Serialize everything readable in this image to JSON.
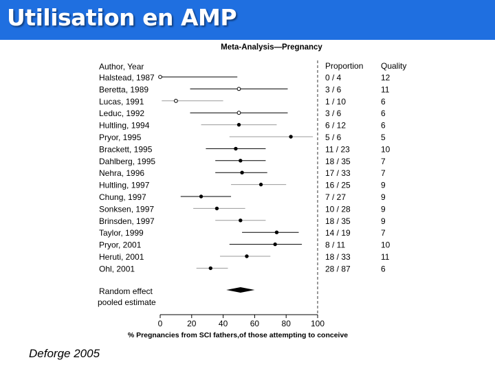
{
  "slide_title": "Utilisation en AMP",
  "caption": "Deforge 2005",
  "colors": {
    "title_bar": "#1f6fe0",
    "title_text": "#ffffff",
    "ci_gray": "#999999",
    "ci_black": "#000000"
  },
  "chart_data": {
    "type": "forest",
    "title": "Meta-Analysis—Pregnancy",
    "xlabel": "% Pregnancies from SCI fathers,of those attempting to conceive",
    "xlim": [
      0,
      100
    ],
    "xticks": [
      0,
      20,
      40,
      60,
      80,
      100
    ],
    "reference_line": 100,
    "column_headers": {
      "study": "Author,  Year",
      "proportion": "Proportion",
      "quality": "Quality"
    },
    "studies": [
      {
        "label": "Halstead, 1987",
        "estimate": 0,
        "ci_low": 0,
        "ci_high": 49,
        "proportion": "0 / 4",
        "quality": "12",
        "marker": "open",
        "ci_color": "black"
      },
      {
        "label": "Beretta, 1989",
        "estimate": 50,
        "ci_low": 19,
        "ci_high": 81,
        "proportion": "3 / 6",
        "quality": "11",
        "marker": "open",
        "ci_color": "black"
      },
      {
        "label": "Lucas, 1991",
        "estimate": 10,
        "ci_low": 1,
        "ci_high": 40,
        "proportion": "1 / 10",
        "quality": "6",
        "marker": "open",
        "ci_color": "gray"
      },
      {
        "label": "Leduc, 1992",
        "estimate": 50,
        "ci_low": 19,
        "ci_high": 81,
        "proportion": "3 / 6",
        "quality": "6",
        "marker": "open",
        "ci_color": "black"
      },
      {
        "label": "Hultling, 1994",
        "estimate": 50,
        "ci_low": 26,
        "ci_high": 74,
        "proportion": "6 / 12",
        "quality": "6",
        "marker": "filled",
        "ci_color": "gray"
      },
      {
        "label": "Pryor, 1995",
        "estimate": 83,
        "ci_low": 44,
        "ci_high": 97,
        "proportion": "5 / 6",
        "quality": "5",
        "marker": "filled",
        "ci_color": "gray"
      },
      {
        "label": "Brackett, 1995",
        "estimate": 48,
        "ci_low": 29,
        "ci_high": 67,
        "proportion": "11 / 23",
        "quality": "10",
        "marker": "filled",
        "ci_color": "black"
      },
      {
        "label": "Dahlberg, 1995",
        "estimate": 51,
        "ci_low": 35,
        "ci_high": 67,
        "proportion": "18 / 35",
        "quality": "7",
        "marker": "filled",
        "ci_color": "black"
      },
      {
        "label": "Nehra, 1996",
        "estimate": 52,
        "ci_low": 35,
        "ci_high": 68,
        "proportion": "17 / 33",
        "quality": "7",
        "marker": "filled",
        "ci_color": "black"
      },
      {
        "label": "Hultling, 1997",
        "estimate": 64,
        "ci_low": 45,
        "ci_high": 80,
        "proportion": "16 / 25",
        "quality": "9",
        "marker": "filled",
        "ci_color": "gray"
      },
      {
        "label": "Chung, 1997",
        "estimate": 26,
        "ci_low": 13,
        "ci_high": 45,
        "proportion": "7 / 27",
        "quality": "9",
        "marker": "filled",
        "ci_color": "black"
      },
      {
        "label": "Sonksen, 1997",
        "estimate": 36,
        "ci_low": 21,
        "ci_high": 54,
        "proportion": "10 / 28",
        "quality": "9",
        "marker": "filled",
        "ci_color": "gray"
      },
      {
        "label": "Brinsden, 1997",
        "estimate": 51,
        "ci_low": 35,
        "ci_high": 67,
        "proportion": "18 / 35",
        "quality": "9",
        "marker": "filled",
        "ci_color": "gray"
      },
      {
        "label": "Taylor, 1999",
        "estimate": 74,
        "ci_low": 52,
        "ci_high": 88,
        "proportion": "14 / 19",
        "quality": "7",
        "marker": "filled",
        "ci_color": "black"
      },
      {
        "label": "Pryor, 2001",
        "estimate": 73,
        "ci_low": 44,
        "ci_high": 90,
        "proportion": "8 / 11",
        "quality": "10",
        "marker": "filled",
        "ci_color": "black"
      },
      {
        "label": "Heruti, 2001",
        "estimate": 55,
        "ci_low": 38,
        "ci_high": 70,
        "proportion": "18 / 33",
        "quality": "11",
        "marker": "filled",
        "ci_color": "gray"
      },
      {
        "label": "Ohl, 2001",
        "estimate": 32,
        "ci_low": 23,
        "ci_high": 43,
        "proportion": "28 / 87",
        "quality": "6",
        "marker": "filled",
        "ci_color": "gray"
      }
    ],
    "pooled": {
      "label_line1": "Random effect",
      "label_line2": "pooled estimate",
      "estimate": 51,
      "ci_low": 42,
      "ci_high": 60
    }
  }
}
